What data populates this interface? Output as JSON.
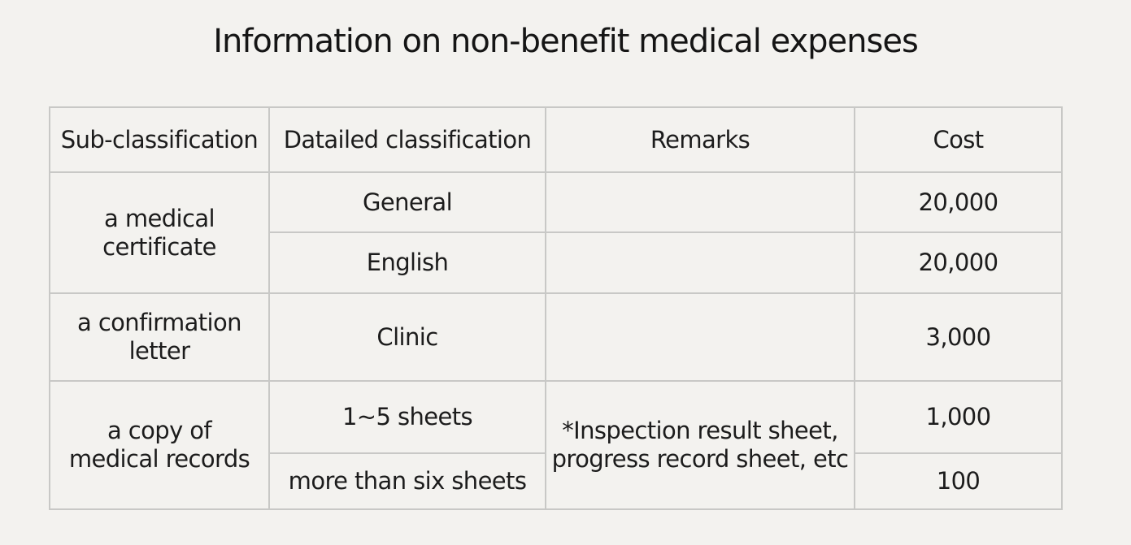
{
  "title": "Information on non-benefit medical expenses",
  "table": {
    "headers": [
      "Sub-classification",
      "Datailed classification",
      "Remarks",
      "Cost"
    ],
    "groups": [
      {
        "sub_classification_lines": [
          "a medical",
          "certificate"
        ],
        "rows": [
          {
            "detailed": "General",
            "remarks": "",
            "cost": "20,000"
          },
          {
            "detailed": "English",
            "remarks": "",
            "cost": "20,000"
          }
        ]
      },
      {
        "sub_classification_lines": [
          "a confirmation",
          "letter"
        ],
        "rows": [
          {
            "detailed": "Clinic",
            "remarks": "",
            "cost": "3,000"
          }
        ]
      },
      {
        "sub_classification_lines": [
          "a copy of",
          "medical records"
        ],
        "remarks_lines": [
          "*Inspection result sheet,",
          "progress record sheet, etc"
        ],
        "rows": [
          {
            "detailed": "1~5 sheets",
            "cost": "1,000"
          },
          {
            "detailed": "more than six sheets",
            "cost": "100"
          }
        ]
      }
    ]
  }
}
